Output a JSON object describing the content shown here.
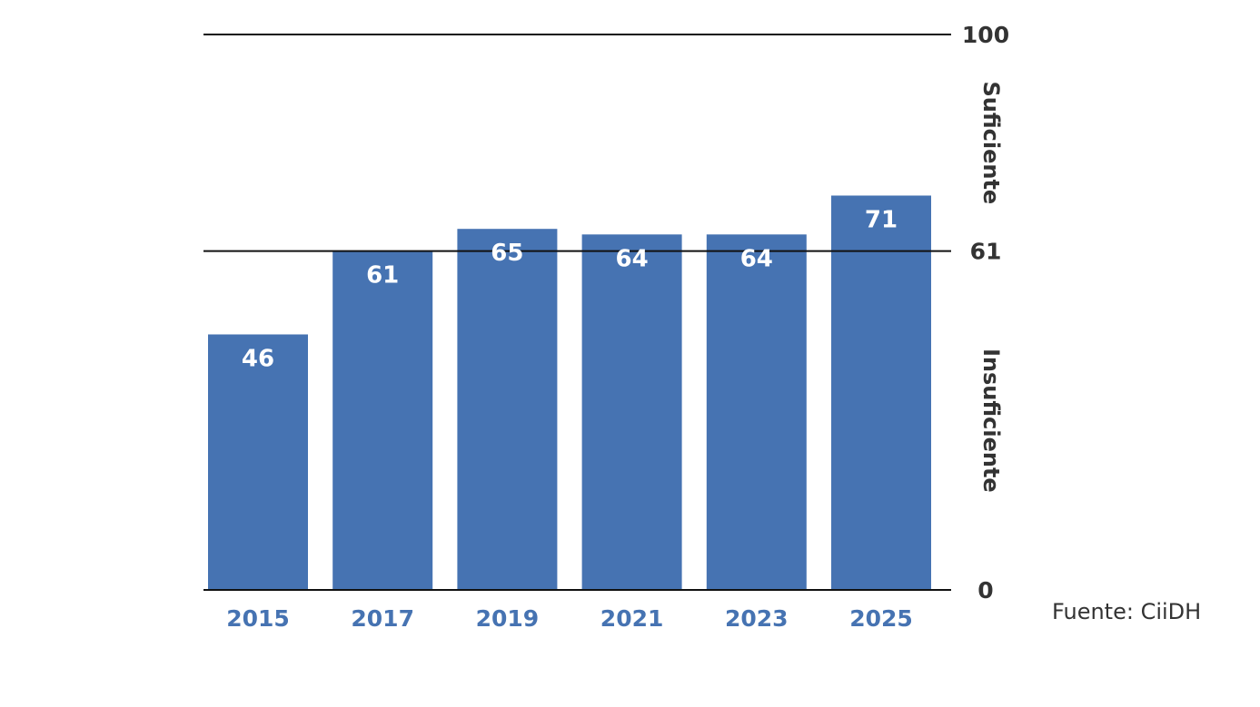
{
  "chart_data": {
    "type": "bar",
    "categories": [
      "2015",
      "2017",
      "2019",
      "2021",
      "2023",
      "2025"
    ],
    "values": [
      46,
      61,
      65,
      64,
      64,
      71
    ],
    "title": "",
    "xlabel": "",
    "ylabel": "",
    "ylim": [
      0,
      100
    ],
    "grid": false,
    "reference_lines": [
      {
        "value": 100,
        "label": "100"
      },
      {
        "value": 61,
        "label": "61"
      },
      {
        "value": 0,
        "label": "0"
      }
    ],
    "zones": [
      {
        "label": "Suficiente",
        "from": 61,
        "to": 100
      },
      {
        "label": "Insuficiente",
        "from": 0,
        "to": 61
      }
    ],
    "bar_color": "#4673b2",
    "source": "Fuente: CiiDH"
  }
}
